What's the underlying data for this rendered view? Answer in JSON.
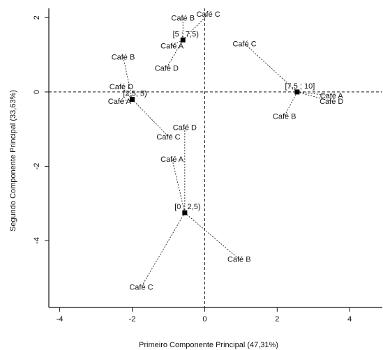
{
  "chart_data": {
    "type": "scatter",
    "title": "",
    "xlabel": "Primeiro Componente Principal (47,31%)",
    "ylabel": "Segundo Componente Principal (33,63%)",
    "xlim": [
      -4.3,
      4.9
    ],
    "ylim": [
      -5.8,
      2.25
    ],
    "xticks": [
      -4,
      -2,
      0,
      2,
      4
    ],
    "yticks": [
      -4,
      -2,
      0,
      2
    ],
    "xtick_labels": [
      "-4",
      "-2",
      "0",
      "2",
      "4"
    ],
    "ytick_labels": [
      "-4",
      "-2",
      "0",
      "2"
    ],
    "reference_lines": {
      "x": 0,
      "y": 0
    },
    "grid": false,
    "groups": [
      {
        "center_label": "[5 ; 7,5)",
        "center": [
          -0.6,
          1.4
        ],
        "points": [
          {
            "label": "Café B",
            "x": -0.6,
            "y": 2.0
          },
          {
            "label": "Café C",
            "x": 0.1,
            "y": 2.1
          },
          {
            "label": "Café A",
            "x": -0.9,
            "y": 1.25
          },
          {
            "label": "Café D",
            "x": -1.05,
            "y": 0.65
          }
        ]
      },
      {
        "center_label": "[2,5; 5)",
        "center": [
          -2.0,
          -0.2
        ],
        "points": [
          {
            "label": "Café B",
            "x": -2.25,
            "y": 0.95
          },
          {
            "label": "Café D",
            "x": -2.3,
            "y": 0.15
          },
          {
            "label": "Café A",
            "x": -2.35,
            "y": -0.25
          },
          {
            "label": "Café C",
            "x": -1.0,
            "y": -1.2
          }
        ]
      },
      {
        "center_label": "[7,5 ; 10]",
        "center": [
          2.55,
          0.0
        ],
        "points": [
          {
            "label": "Café C",
            "x": 1.1,
            "y": 1.3
          },
          {
            "label": "Café B",
            "x": 2.2,
            "y": -0.65
          },
          {
            "label": "Café A",
            "x": 3.5,
            "y": -0.1
          },
          {
            "label": "Café D",
            "x": 3.5,
            "y": -0.25
          }
        ]
      },
      {
        "center_label": "[0 ; 2,5)",
        "center": [
          -0.55,
          -3.25
        ],
        "points": [
          {
            "label": "Café D",
            "x": -0.55,
            "y": -0.95
          },
          {
            "label": "Café A",
            "x": -0.9,
            "y": -1.8
          },
          {
            "label": "Café B",
            "x": 0.95,
            "y": -4.5
          },
          {
            "label": "Café C",
            "x": -1.75,
            "y": -5.25
          }
        ]
      }
    ]
  }
}
